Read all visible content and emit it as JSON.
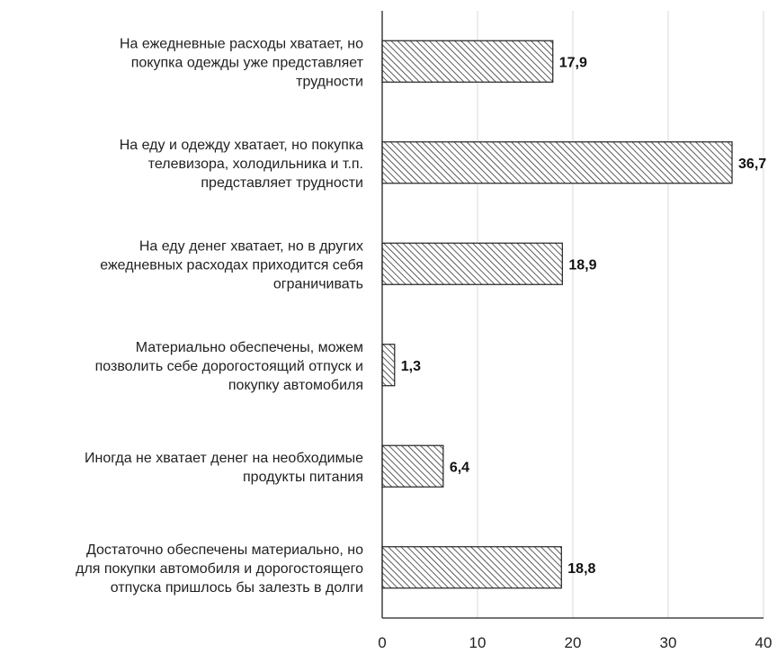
{
  "chart_data": {
    "type": "bar",
    "orientation": "horizontal",
    "title": "",
    "xlabel": "",
    "ylabel": "",
    "categories": [
      "На ежедневные расходы хватает, но покупка одежды уже представляет трудности",
      "На еду и одежду хватает, но покупка телевизора, холодильника и т.п. представляет трудности",
      "На еду денег хватает, но в других ежедневных расходах приходится себя ограничивать",
      "Материально обеспечены, можем позволить себе дорогостоящий отпуск и покупку автомобиля",
      "Иногда не хватает денег на необходимые продукты питания",
      "Достаточно обеспечены материально, но для покупки автомобиля и дорогостоящего отпуска пришлось бы залезть в долги"
    ],
    "category_lines": [
      [
        "На ежедневные расходы хватает, но",
        "покупка одежды уже представляет",
        "трудности"
      ],
      [
        "На еду и одежду хватает, но покупка",
        "телевизора, холодильника и т.п.",
        "представляет трудности"
      ],
      [
        "На еду денег хватает, но в других",
        "ежедневных расходах приходится себя",
        "ограничивать"
      ],
      [
        "Материально обеспечены, можем",
        "позволить себе дорогостоящий отпуск и",
        "покупку автомобиля"
      ],
      [
        "Иногда не хватает денег на необходимые",
        "продукты питания"
      ],
      [
        "Достаточно обеспечены материально, но",
        "для покупки автомобиля и дорогостоящего",
        "отпуска пришлось бы залезть в долги"
      ]
    ],
    "values": [
      17.9,
      36.7,
      18.9,
      1.3,
      6.4,
      18.8
    ],
    "value_labels": [
      "17,9",
      "36,7",
      "18,9",
      "1,3",
      "6,4",
      "18,8"
    ],
    "xlim": [
      0,
      40
    ],
    "ticks": [
      0,
      10,
      20,
      30,
      40
    ],
    "tick_labels": [
      "0",
      "10",
      "20",
      "30",
      "40"
    ],
    "grid": "vertical",
    "legend": "none",
    "bar_pattern": "diagonal-hatch",
    "colors": {
      "bar_fill": "#ffffff",
      "bar_hatch": "#333333",
      "bar_stroke": "#222222",
      "grid": "#d9d9d9",
      "text": "#222222"
    }
  }
}
